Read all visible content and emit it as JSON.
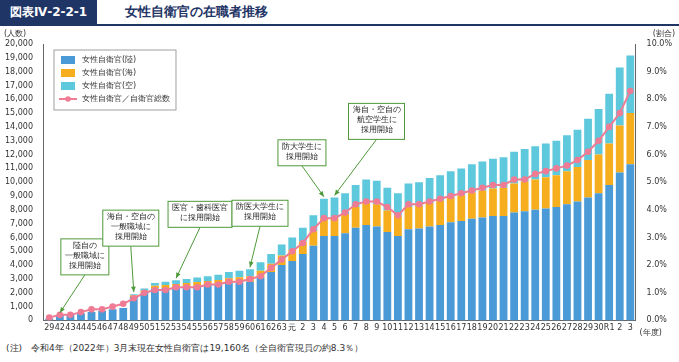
{
  "chart_data": {
    "type": "bar",
    "figure_label": "図表Ⅳ-2-2-1",
    "title": "女性自衛官の在職者推移",
    "note": "(注)　令和4年（2022年）3月末現在女性自衛官は19,160名（全自衛官現員の約8.3％）",
    "y_label": "(人数)",
    "y2_label": "(割合)",
    "x_label": "(年度)",
    "stacked": true,
    "grid": false,
    "legend": "upper left",
    "categories": [
      "29",
      "42",
      "43",
      "44",
      "45",
      "46",
      "47",
      "48",
      "49",
      "50",
      "51",
      "52",
      "53",
      "54",
      "55",
      "56",
      "57",
      "58",
      "59",
      "60",
      "61",
      "62",
      "63",
      "元",
      "2",
      "3",
      "4",
      "5",
      "6",
      "7",
      "8",
      "9",
      "10",
      "11",
      "12",
      "13",
      "14",
      "15",
      "16",
      "17",
      "18",
      "19",
      "20",
      "21",
      "22",
      "23",
      "24",
      "25",
      "26",
      "27",
      "28",
      "29",
      "30",
      "R1",
      "2",
      "3"
    ],
    "series": [
      {
        "name": "女性自衛官(陸)",
        "type": "bar",
        "color": "#4b9ad8",
        "values": [
          140,
          400,
          450,
          520,
          600,
          700,
          800,
          900,
          1700,
          2000,
          2300,
          2350,
          2400,
          2450,
          2500,
          2550,
          2600,
          2700,
          2750,
          2800,
          3100,
          3500,
          4000,
          4300,
          4800,
          5400,
          6100,
          6100,
          6300,
          6700,
          6900,
          6800,
          6400,
          6100,
          6600,
          6650,
          6800,
          6900,
          7100,
          7200,
          7350,
          7450,
          7550,
          7550,
          7800,
          7900,
          8000,
          8100,
          8200,
          8400,
          8600,
          8900,
          9200,
          9800,
          10700,
          11300
        ]
      },
      {
        "name": "女性自衛官(海)",
        "type": "bar",
        "color": "#f6ae1f",
        "values": [
          0,
          0,
          0,
          0,
          0,
          0,
          0,
          0,
          100,
          150,
          200,
          220,
          240,
          260,
          280,
          300,
          320,
          350,
          370,
          400,
          500,
          600,
          700,
          800,
          900,
          1050,
          1300,
          1350,
          1400,
          1500,
          1600,
          1600,
          1550,
          1500,
          1600,
          1650,
          1700,
          1750,
          1800,
          1850,
          1900,
          1950,
          2000,
          2050,
          2100,
          2150,
          2200,
          2250,
          2300,
          2400,
          2500,
          2700,
          2800,
          3000,
          3400,
          3700
        ]
      },
      {
        "name": "女性自衛官(空)",
        "type": "bar",
        "color": "#5ec8dc",
        "values": [
          0,
          0,
          0,
          0,
          0,
          0,
          0,
          0,
          100,
          150,
          200,
          230,
          260,
          290,
          320,
          350,
          380,
          450,
          480,
          500,
          600,
          700,
          800,
          900,
          1000,
          1150,
          1400,
          1450,
          1500,
          1600,
          1700,
          1700,
          1650,
          1600,
          1700,
          1700,
          1800,
          1850,
          1900,
          1950,
          2050,
          2100,
          2150,
          2200,
          2300,
          2350,
          2400,
          2450,
          2500,
          2600,
          2700,
          3000,
          3300,
          3600,
          4200,
          4160
        ]
      },
      {
        "name": "女性自衛官／自衛官総数",
        "type": "line",
        "axis": "y2",
        "color": "#ef7b94",
        "marker": "circle",
        "values": [
          0.1,
          0.2,
          0.2,
          0.3,
          0.4,
          0.4,
          0.5,
          0.6,
          0.8,
          1.0,
          1.1,
          1.1,
          1.2,
          1.2,
          1.2,
          1.3,
          1.3,
          1.4,
          1.4,
          1.5,
          1.6,
          1.9,
          2.2,
          2.5,
          2.8,
          3.3,
          3.7,
          3.7,
          3.9,
          4.2,
          4.3,
          4.3,
          4.1,
          3.8,
          4.2,
          4.2,
          4.3,
          4.4,
          4.5,
          4.6,
          4.7,
          4.8,
          4.9,
          4.9,
          5.1,
          5.1,
          5.3,
          5.4,
          5.5,
          5.6,
          5.8,
          6.1,
          6.5,
          7.0,
          7.5,
          8.3
        ]
      }
    ],
    "ylim": [
      0,
      20000
    ],
    "yticks": [
      0,
      {
        "value": 1000,
        "label": "1,000"
      },
      {
        "value": 2000,
        "label": "2,000"
      },
      {
        "value": 3000,
        "label": "3,000"
      },
      {
        "value": 4000,
        "label": "4,000"
      },
      {
        "value": 5000,
        "label": "5,000"
      },
      {
        "value": 6000,
        "label": "6,000"
      },
      {
        "value": 7000,
        "label": "7,000"
      },
      {
        "value": 8000,
        "label": "8,000"
      },
      {
        "value": 9000,
        "label": "9,000"
      },
      {
        "value": 10000,
        "label": "10,000"
      },
      {
        "value": 11000,
        "label": "11,000"
      },
      {
        "value": 12000,
        "label": "12,000"
      },
      {
        "value": 13000,
        "label": "13,000"
      },
      {
        "value": 14000,
        "label": "14,000"
      },
      {
        "value": 15000,
        "label": "15,000"
      },
      {
        "value": 16000,
        "label": "16,000"
      },
      {
        "value": 17000,
        "label": "17,000"
      },
      {
        "value": 18000,
        "label": "18,000"
      },
      {
        "value": 19000,
        "label": "19,000"
      },
      {
        "value": 20000,
        "label": "20,000"
      }
    ],
    "y2lim": [
      0,
      10
    ],
    "y2ticks": [
      {
        "value": 0,
        "label": "0.0%"
      },
      {
        "value": 1,
        "label": "1.0%"
      },
      {
        "value": 2,
        "label": "2.0%"
      },
      {
        "value": 3,
        "label": "3.0%"
      },
      {
        "value": 4,
        "label": "4.0%"
      },
      {
        "value": 5,
        "label": "5.0%"
      },
      {
        "value": 6,
        "label": "6.0%"
      },
      {
        "value": 7,
        "label": "7.0%"
      },
      {
        "value": 8,
        "label": "8.0%"
      },
      {
        "value": 9,
        "label": "9.0%"
      },
      {
        "value": 10,
        "label": "10.0%"
      }
    ],
    "annotations": [
      {
        "category_index": 1,
        "lines": [
          "陸自の",
          "一般職域に",
          "採用開始"
        ]
      },
      {
        "category_index": 8,
        "lines": [
          "海自・空自の",
          "一般職域に",
          "採用開始"
        ]
      },
      {
        "category_index": 12,
        "lines": [
          "医官・歯科医官",
          "に採用開始"
        ]
      },
      {
        "category_index": 19,
        "lines": [
          "防医大学生に",
          "採用開始"
        ]
      },
      {
        "category_index": 26,
        "lines": [
          "防大学生に",
          "採用開始"
        ]
      },
      {
        "category_index": 27,
        "lines": [
          "海自・空自の",
          "航空学生に",
          "採用開始"
        ]
      }
    ]
  }
}
